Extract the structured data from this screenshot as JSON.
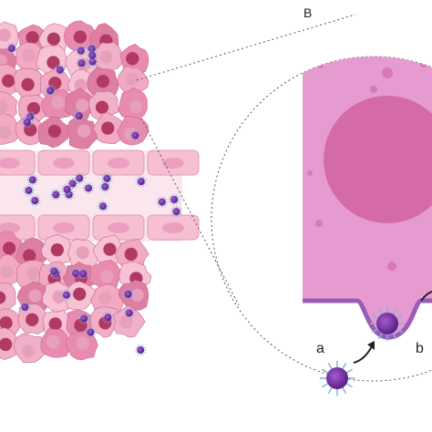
{
  "labels": {
    "panel": "B",
    "a": "a",
    "b": "b"
  }
}
